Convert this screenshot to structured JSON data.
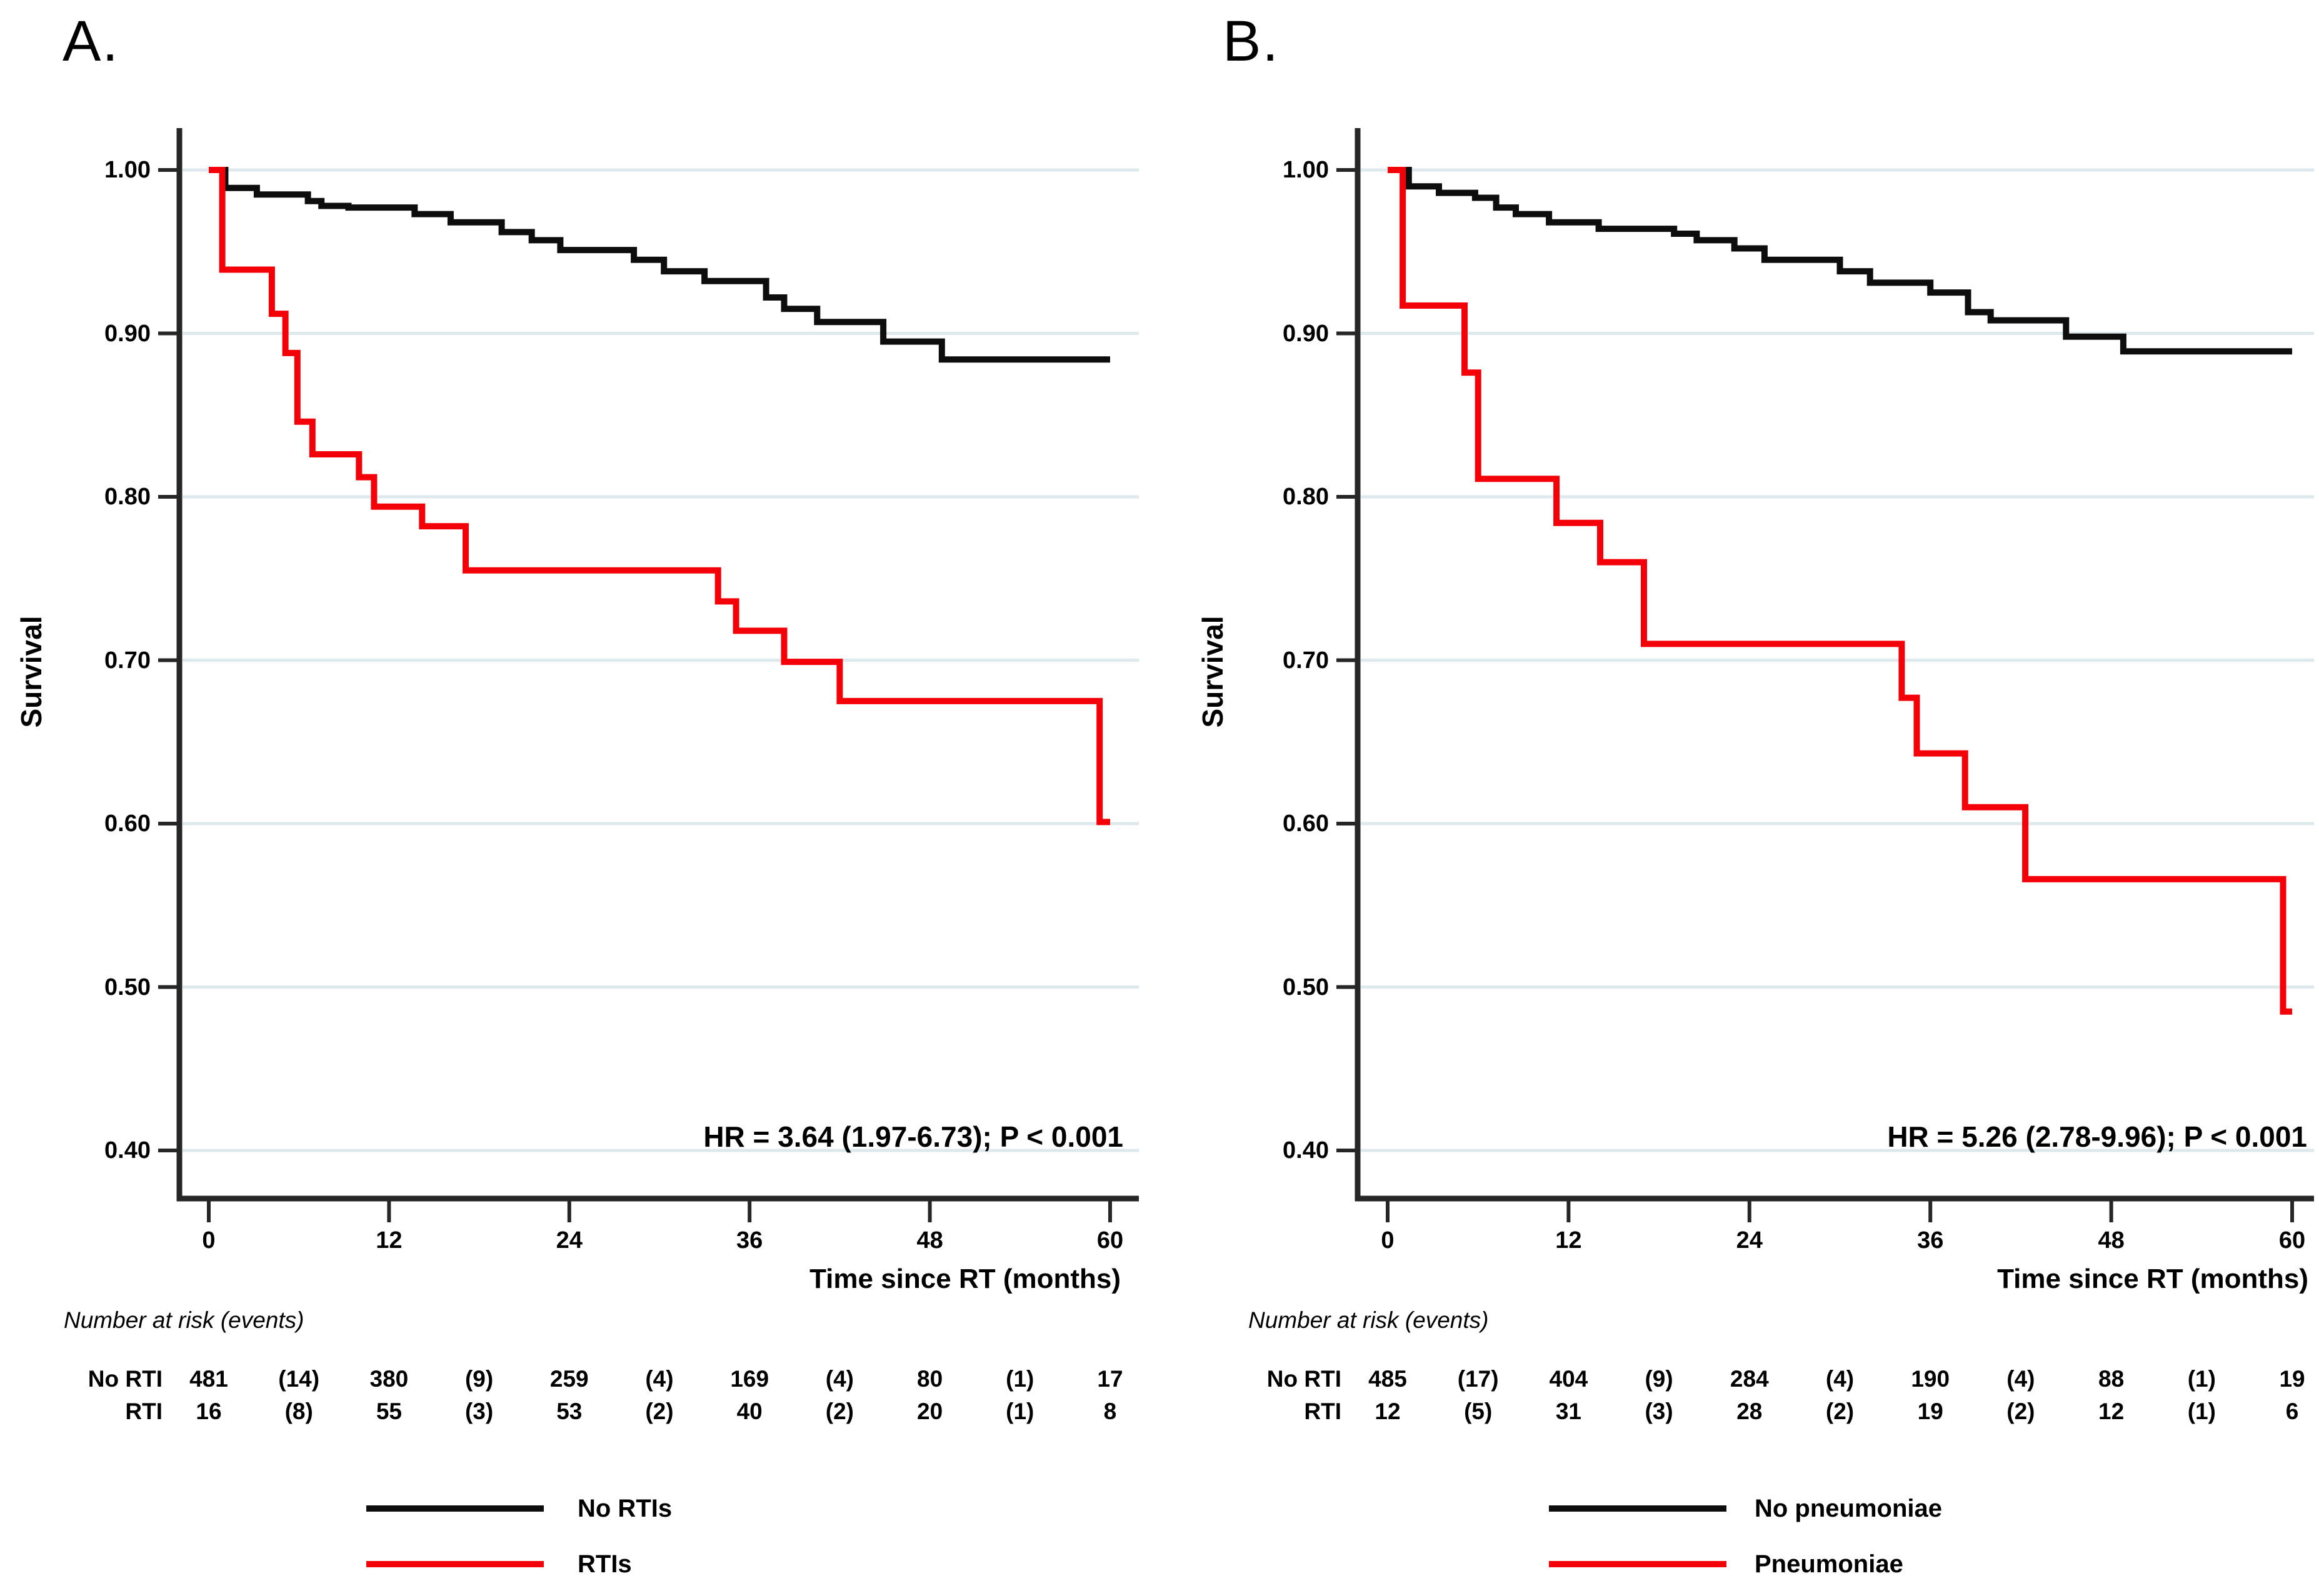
{
  "colors": {
    "black_curve": "#0d0d0d",
    "red_curve": "#f40008",
    "gridline": "#dde9ec",
    "axis": "#262626",
    "text": "#000000"
  },
  "chart_data": [
    {
      "type": "line",
      "step": true,
      "title": "A.",
      "xlabel": "Time since RT (months)",
      "ylabel": "Survival",
      "xlim": [
        0,
        60
      ],
      "xticks": [
        0,
        12,
        24,
        36,
        48,
        60
      ],
      "ylim": [
        0.4,
        1.0
      ],
      "ytick_labels": [
        "1.00",
        "0.90",
        "0.80",
        "0.70",
        "0.60",
        "0.50",
        "0.40"
      ],
      "grid": true,
      "legend_position": "bottom",
      "annotation": "HR = 3.64 (1.97-6.73); P < 0.001",
      "series": [
        {
          "name": "No RTIs",
          "color": "#0d0d0d",
          "points": [
            [
              0,
              1.0
            ],
            [
              1.1,
              0.989
            ],
            [
              3.2,
              0.985
            ],
            [
              6.6,
              0.981
            ],
            [
              7.5,
              0.978
            ],
            [
              9.3,
              0.977
            ],
            [
              13.7,
              0.973
            ],
            [
              16.1,
              0.968
            ],
            [
              19.5,
              0.962
            ],
            [
              21.5,
              0.957
            ],
            [
              23.4,
              0.951
            ],
            [
              28.3,
              0.945
            ],
            [
              30.3,
              0.938
            ],
            [
              33.0,
              0.932
            ],
            [
              37.1,
              0.922
            ],
            [
              38.3,
              0.915
            ],
            [
              40.5,
              0.907
            ],
            [
              44.9,
              0.895
            ],
            [
              48.8,
              0.884
            ]
          ],
          "end_x": 60
        },
        {
          "name": "RTIs",
          "color": "#f40008",
          "points": [
            [
              0,
              1.0
            ],
            [
              0.9,
              0.939
            ],
            [
              4.2,
              0.912
            ],
            [
              5.1,
              0.888
            ],
            [
              5.9,
              0.846
            ],
            [
              6.9,
              0.826
            ],
            [
              10.0,
              0.812
            ],
            [
              11.0,
              0.794
            ],
            [
              14.2,
              0.782
            ],
            [
              17.1,
              0.755
            ],
            [
              33.9,
              0.736
            ],
            [
              35.1,
              0.718
            ],
            [
              38.3,
              0.699
            ],
            [
              42.0,
              0.675
            ],
            [
              59.3,
              0.601
            ]
          ],
          "end_x": 60
        }
      ]
    },
    {
      "type": "line",
      "step": true,
      "title": "B.",
      "xlabel": "Time since RT (months)",
      "ylabel": "Survival",
      "xlim": [
        0,
        60
      ],
      "xticks": [
        0,
        12,
        24,
        36,
        48,
        60
      ],
      "ylim": [
        0.4,
        1.0
      ],
      "ytick_labels": [
        "1.00",
        "0.90",
        "0.80",
        "0.70",
        "0.60",
        "0.50",
        "0.40"
      ],
      "grid": true,
      "legend_position": "bottom",
      "annotation": "HR = 5.26 (2.78-9.96); P < 0.001",
      "series": [
        {
          "name": "No pneumoniae",
          "color": "#0d0d0d",
          "points": [
            [
              0,
              1.0
            ],
            [
              1.4,
              0.99
            ],
            [
              3.4,
              0.986
            ],
            [
              5.8,
              0.983
            ],
            [
              7.2,
              0.977
            ],
            [
              8.5,
              0.973
            ],
            [
              10.7,
              0.968
            ],
            [
              14.0,
              0.964
            ],
            [
              19.0,
              0.961
            ],
            [
              20.5,
              0.957
            ],
            [
              23.0,
              0.952
            ],
            [
              25.0,
              0.945
            ],
            [
              30.0,
              0.938
            ],
            [
              32.0,
              0.931
            ],
            [
              36.0,
              0.925
            ],
            [
              38.5,
              0.913
            ],
            [
              40.0,
              0.908
            ],
            [
              45.0,
              0.898
            ],
            [
              48.8,
              0.889
            ]
          ],
          "end_x": 60
        },
        {
          "name": "Pneumoniae",
          "color": "#f40008",
          "points": [
            [
              0,
              1.0
            ],
            [
              1.0,
              0.917
            ],
            [
              5.1,
              0.876
            ],
            [
              6.0,
              0.811
            ],
            [
              11.2,
              0.784
            ],
            [
              14.1,
              0.76
            ],
            [
              17.0,
              0.71
            ],
            [
              34.1,
              0.677
            ],
            [
              35.1,
              0.643
            ],
            [
              38.3,
              0.61
            ],
            [
              42.3,
              0.566
            ],
            [
              59.4,
              0.485
            ]
          ],
          "end_x": 60
        }
      ]
    }
  ],
  "panels": [
    {
      "label": "A.",
      "ylabel": "Survival",
      "xlabel": "Time since RT (months)",
      "hr_text": "HR = 3.64 (1.97-6.73); P < 0.001",
      "risk_table": {
        "header": "Number at risk (events)",
        "rows": [
          {
            "label": "No RTI",
            "values": [
              "481",
              "(14)",
              "380",
              "(9)",
              "259",
              "(4)",
              "169",
              "(4)",
              "80",
              "(1)",
              "17"
            ]
          },
          {
            "label": "RTI",
            "values": [
              "16",
              "(8)",
              "55",
              "(3)",
              "53",
              "(2)",
              "40",
              "(2)",
              "20",
              "(1)",
              "8"
            ]
          }
        ]
      },
      "legend": [
        {
          "label": "No RTIs",
          "color": "#0d0d0d"
        },
        {
          "label": "RTIs",
          "color": "#f40008"
        }
      ]
    },
    {
      "label": "B.",
      "ylabel": "Survival",
      "xlabel": "Time since RT (months)",
      "hr_text": "HR = 5.26 (2.78-9.96); P < 0.001",
      "risk_table": {
        "header": "Number at risk (events)",
        "rows": [
          {
            "label": "No RTI",
            "values": [
              "485",
              "(17)",
              "404",
              "(9)",
              "284",
              "(4)",
              "190",
              "(4)",
              "88",
              "(1)",
              "19"
            ]
          },
          {
            "label": "RTI",
            "values": [
              "12",
              "(5)",
              "31",
              "(3)",
              "28",
              "(2)",
              "19",
              "(2)",
              "12",
              "(1)",
              "6"
            ]
          }
        ]
      },
      "legend": [
        {
          "label": "No pneumoniae",
          "color": "#0d0d0d"
        },
        {
          "label": "Pneumoniae",
          "color": "#f40008"
        }
      ]
    }
  ]
}
